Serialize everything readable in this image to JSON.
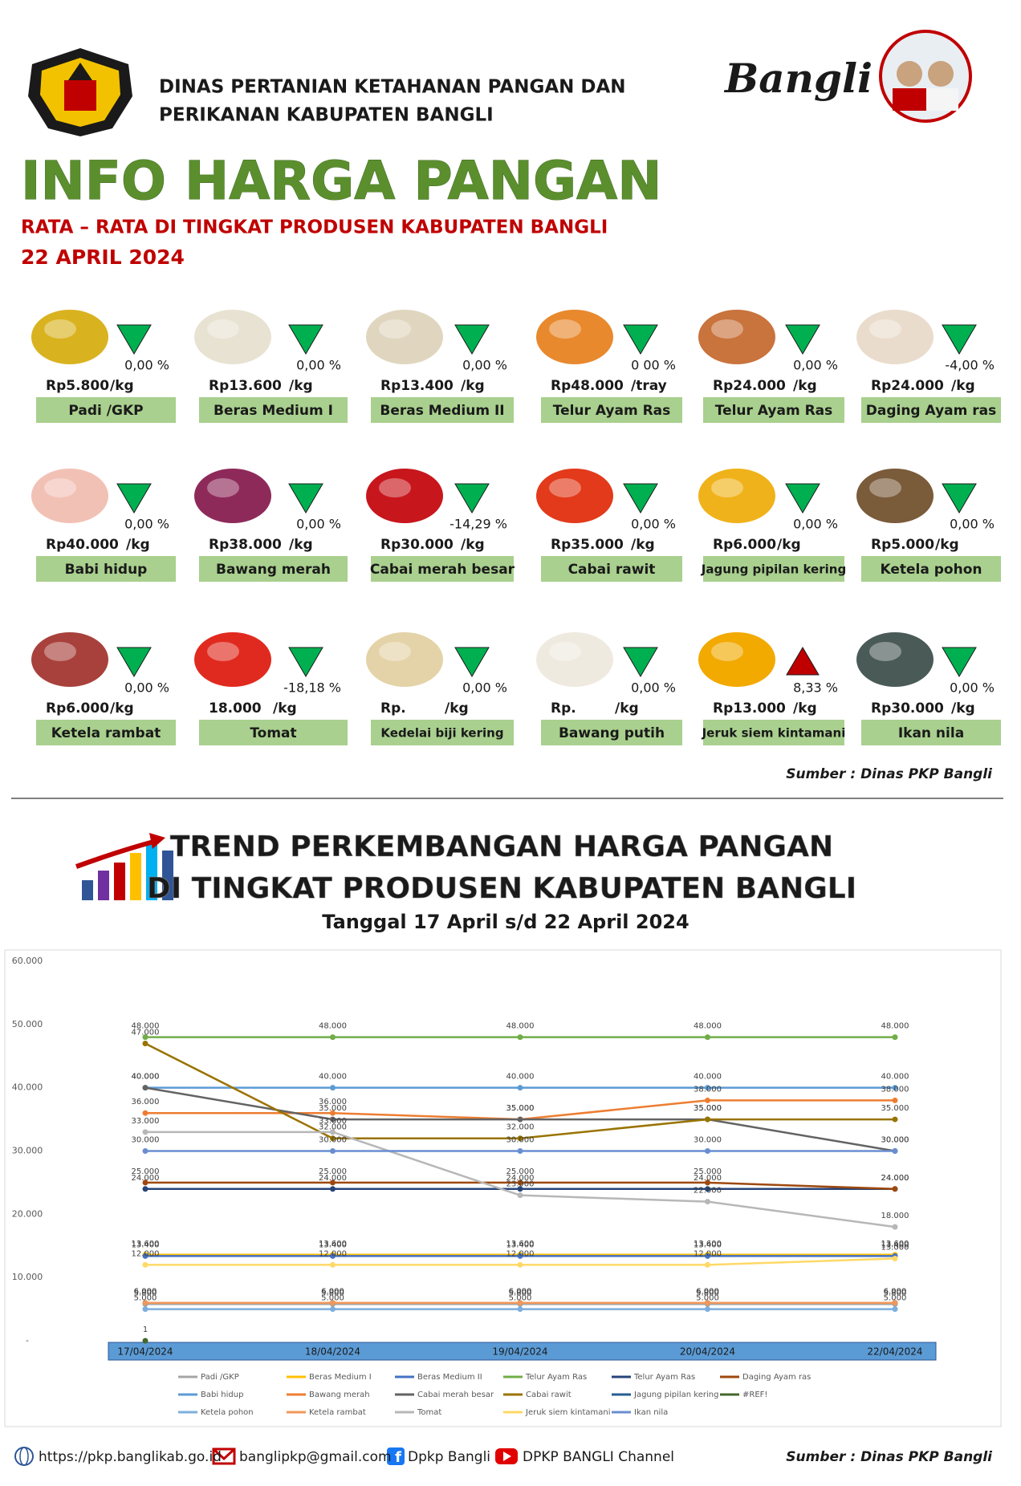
{
  "header": {
    "org_line1": "DINAS PERTANIAN KETAHANAN PANGAN DAN",
    "org_line2": "PERIKANAN KABUPATEN BANGLI",
    "logo_text": "Bangli",
    "title": "INFO HARGA PANGAN",
    "subtitle": "RATA – RATA DI TINGKAT PRODUSEN KABUPATEN BANGLI",
    "date": "22 APRIL 2024"
  },
  "products": [
    {
      "name": "Padi /GKP",
      "price": "Rp5.800",
      "unit": "/kg",
      "change": "0,00 %",
      "trend": "down"
    },
    {
      "name": "Beras Medium I",
      "price": "Rp13.600",
      "unit": "/kg",
      "change": "0,00 %",
      "trend": "down"
    },
    {
      "name": "Beras Medium II",
      "price": "Rp13.400",
      "unit": "/kg",
      "change": "0,00 %",
      "trend": "down"
    },
    {
      "name": "Telur Ayam Ras",
      "price": "Rp48.000",
      "unit": "/tray",
      "change": "0 00 %",
      "trend": "down"
    },
    {
      "name": "Telur Ayam Ras",
      "price": "Rp24.000",
      "unit": "/kg",
      "change": "0,00 %",
      "trend": "down"
    },
    {
      "name": "Daging Ayam ras",
      "price": "Rp24.000",
      "unit": "/kg",
      "change": "-4,00 %",
      "trend": "down"
    },
    {
      "name": "Babi hidup",
      "price": "Rp40.000",
      "unit": "/kg",
      "change": "0,00 %",
      "trend": "down"
    },
    {
      "name": "Bawang merah",
      "price": "Rp38.000",
      "unit": "/kg",
      "change": "0,00 %",
      "trend": "down"
    },
    {
      "name": "Cabai merah besar",
      "price": "Rp30.000",
      "unit": "/kg",
      "change": "-14,29 %",
      "trend": "down"
    },
    {
      "name": "Cabai rawit",
      "price": "Rp35.000",
      "unit": "/kg",
      "change": "0,00 %",
      "trend": "down"
    },
    {
      "name": "Jagung pipilan kering",
      "price": "Rp6.000",
      "unit": "/kg",
      "change": "0,00 %",
      "trend": "down"
    },
    {
      "name": "Ketela pohon",
      "price": "Rp5.000",
      "unit": "/kg",
      "change": "0,00 %",
      "trend": "down"
    },
    {
      "name": "Ketela rambat",
      "price": "Rp6.000",
      "unit": "/kg",
      "change": "0,00 %",
      "trend": "down"
    },
    {
      "name": "Tomat",
      "price": "18.000",
      "unit": "/kg",
      "change": "-18,18 %",
      "trend": "down"
    },
    {
      "name": "Kedelai biji kering",
      "price": "Rp.",
      "unit": "/kg",
      "change": "0,00 %",
      "trend": "down"
    },
    {
      "name": "Bawang putih",
      "price": "Rp.",
      "unit": "/kg",
      "change": "0,00 %",
      "trend": "down"
    },
    {
      "name": "Jeruk siem kintamani",
      "price": "Rp13.000",
      "unit": "/kg",
      "change": "8,33 %",
      "trend": "up"
    },
    {
      "name": "Ikan nila",
      "price": "Rp30.000",
      "unit": "/kg",
      "change": "0,00 %",
      "trend": "down"
    }
  ],
  "source": "Sumber : Dinas PKP Bangli",
  "trend_title_line1": "TREND PERKEMBANGAN HARGA PANGAN",
  "trend_title_line2": "DI TINGKAT PRODUSEN KABUPATEN BANGLI",
  "trend_date": "Tanggal 17 April s/d 22 April 2024",
  "chart_data": {
    "type": "line",
    "categories": [
      "17/04/2024",
      "18/04/2024",
      "19/04/2024",
      "20/04/2024",
      "22/04/2024"
    ],
    "ylim": [
      0,
      60000
    ],
    "yticks": [
      {
        "value": 0,
        "label": "-"
      },
      {
        "value": 10000,
        "label": "10.000"
      },
      {
        "value": 20000,
        "label": "20.000"
      },
      {
        "value": 30000,
        "label": "30.000"
      },
      {
        "value": 40000,
        "label": "40.000"
      },
      {
        "value": 50000,
        "label": "50.000"
      },
      {
        "value": 60000,
        "label": "60.000"
      }
    ],
    "series": [
      {
        "name": "Padi /GKP",
        "color": "#a5a5a5",
        "values": [
          5800,
          5800,
          5800,
          5800,
          5800
        ],
        "value_labels": [
          "5.800",
          "5.800",
          "5.800",
          "5.800",
          "5.800"
        ]
      },
      {
        "name": "Beras Medium I",
        "color": "#ffc000",
        "values": [
          13600,
          13600,
          13600,
          13600,
          13600
        ],
        "value_labels": [
          "13.600",
          "13.600",
          "13.600",
          "13.600",
          "13.600"
        ]
      },
      {
        "name": "Beras Medium II",
        "color": "#4472c4",
        "values": [
          13400,
          13400,
          13400,
          13400,
          13400
        ],
        "value_labels": [
          "13.400",
          "13.400",
          "13.400",
          "13.400",
          "13.400"
        ]
      },
      {
        "name": "Telur Ayam Ras",
        "color": "#70ad47",
        "values": [
          48000,
          48000,
          48000,
          48000,
          48000
        ],
        "value_labels": [
          "48.000",
          "48.000",
          "48.000",
          "48.000",
          "48.000"
        ]
      },
      {
        "name": "Telur Ayam Ras",
        "color": "#264478",
        "values": [
          24000,
          24000,
          24000,
          24000,
          24000
        ],
        "value_labels": [
          "24.000",
          "24.000",
          "24.000",
          "24.000",
          "24.000"
        ]
      },
      {
        "name": "Daging Ayam ras",
        "color": "#9e480e",
        "values": [
          25000,
          25000,
          25000,
          25000,
          24000
        ],
        "value_labels": [
          "25.000",
          "25.000",
          "25.000",
          "25.000",
          "24.000"
        ]
      },
      {
        "name": "Babi hidup",
        "color": "#5b9bd5",
        "values": [
          40000,
          40000,
          40000,
          40000,
          40000
        ],
        "value_labels": [
          "40.000",
          "40.000",
          "40.000",
          "40.000",
          "40.000"
        ]
      },
      {
        "name": "Bawang merah",
        "color": "#ed7d31",
        "values": [
          36000,
          36000,
          35000,
          38000,
          38000
        ],
        "value_labels": [
          "36.000",
          "36.000",
          "35.000",
          "38.000",
          "38.000"
        ]
      },
      {
        "name": "Cabai merah besar",
        "color": "#636363",
        "values": [
          40000,
          35000,
          35000,
          35000,
          30000
        ],
        "value_labels": [
          "40.000",
          "35.000",
          "35.000",
          "35.000",
          "30.000"
        ]
      },
      {
        "name": "Cabai rawit",
        "color": "#997300",
        "values": [
          47000,
          32000,
          32000,
          35000,
          35000
        ],
        "value_labels": [
          "47.000",
          "32.000",
          "32.000",
          "35.000",
          "35.000"
        ]
      },
      {
        "name": "Jagung pipilan kering",
        "color": "#255e91",
        "values": [
          6000,
          6000,
          6000,
          6000,
          6000
        ],
        "value_labels": [
          "6.000",
          "6.000",
          "6.000",
          "6.000",
          "6.000"
        ]
      },
      {
        "name": "#REF!",
        "color": "#43682b",
        "values": [
          1,
          null,
          null,
          null,
          null
        ],
        "value_labels": [
          "1",
          null,
          null,
          null,
          null
        ]
      },
      {
        "name": "Ketela pohon",
        "color": "#7cafdd",
        "values": [
          5000,
          5000,
          5000,
          5000,
          5000
        ],
        "value_labels": [
          "5.000",
          "5.000",
          "5.000",
          "5.000",
          "5.000"
        ]
      },
      {
        "name": "Ketela rambat",
        "color": "#f1975a",
        "values": [
          6000,
          6000,
          6000,
          6000,
          6000
        ],
        "value_labels": [
          "6.000",
          "6.000",
          "6.000",
          "6.000",
          "6.000"
        ]
      },
      {
        "name": "Tomat",
        "color": "#b7b7b7",
        "values": [
          33000,
          33000,
          23000,
          22000,
          18000
        ],
        "value_labels": [
          "33.000",
          "33.000",
          "23.000",
          "22.000",
          "18.000"
        ]
      },
      {
        "name": "Jeruk siem kintamani",
        "color": "#ffd966",
        "values": [
          12000,
          12000,
          12000,
          12000,
          13000
        ],
        "value_labels": [
          "12.000",
          "12.000",
          "12.000",
          "12.000",
          "13.000"
        ]
      },
      {
        "name": "Ikan nila",
        "color": "#698ed0",
        "values": [
          30000,
          30000,
          30000,
          30000,
          30000
        ],
        "value_labels": [
          "30.000",
          "30.000",
          "30.000",
          "30.000",
          "30.000"
        ]
      }
    ]
  },
  "footer": {
    "website": "https://pkp.banglikab.go.id",
    "email": "banglipkp@gmail.com",
    "facebook": "Dpkp Bangli",
    "youtube": "DPKP BANGLI Channel",
    "source": "Sumber : Dinas PKP Bangli"
  }
}
